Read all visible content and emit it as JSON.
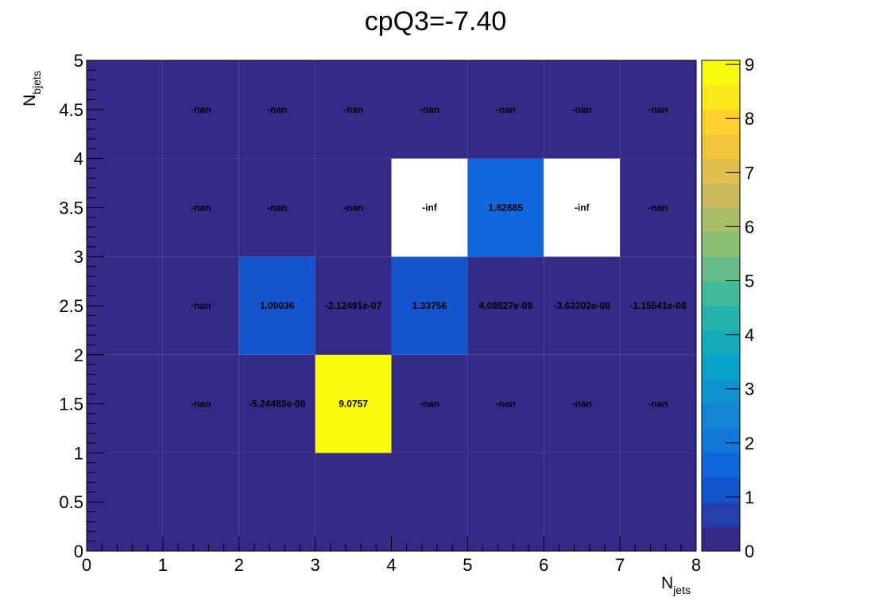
{
  "chart_data": {
    "type": "heatmap",
    "title": "cpQ3=-7.40",
    "xlabel": {
      "base": "N",
      "sub": "jets"
    },
    "ylabel": {
      "base": "N",
      "sub": "bjets"
    },
    "xlim": [
      0,
      8
    ],
    "ylim": [
      0,
      5
    ],
    "zlim": [
      0,
      9.0757
    ],
    "x_ticks": [
      "0",
      "1",
      "2",
      "3",
      "4",
      "5",
      "6",
      "7",
      "8"
    ],
    "y_ticks": [
      "0",
      "0.5",
      "1",
      "1.5",
      "2",
      "2.5",
      "3",
      "3.5",
      "4",
      "4.5",
      "5"
    ],
    "z_ticks": [
      "0",
      "1",
      "2",
      "3",
      "4",
      "5",
      "6",
      "7",
      "8",
      "9"
    ],
    "x_edges": [
      0,
      1,
      2,
      3,
      4,
      5,
      6,
      7,
      8
    ],
    "y_edges": [
      0,
      1,
      2,
      3,
      4,
      5
    ],
    "cells": [
      {
        "ix": 0,
        "iy": 0,
        "value": 0,
        "label": ""
      },
      {
        "ix": 1,
        "iy": 0,
        "value": 0,
        "label": ""
      },
      {
        "ix": 2,
        "iy": 0,
        "value": 0,
        "label": ""
      },
      {
        "ix": 3,
        "iy": 0,
        "value": 0,
        "label": ""
      },
      {
        "ix": 4,
        "iy": 0,
        "value": 0,
        "label": ""
      },
      {
        "ix": 5,
        "iy": 0,
        "value": 0,
        "label": ""
      },
      {
        "ix": 6,
        "iy": 0,
        "value": 0,
        "label": ""
      },
      {
        "ix": 7,
        "iy": 0,
        "value": 0,
        "label": ""
      },
      {
        "ix": 0,
        "iy": 1,
        "value": 0,
        "label": ""
      },
      {
        "ix": 1,
        "iy": 1,
        "value": null,
        "fill": "nan",
        "label": "-nan"
      },
      {
        "ix": 2,
        "iy": 1,
        "value": -5.24483e-08,
        "label": "-5.24483e-08"
      },
      {
        "ix": 3,
        "iy": 1,
        "value": 9.0757,
        "label": "9.0757"
      },
      {
        "ix": 4,
        "iy": 1,
        "value": null,
        "fill": "nan",
        "label": "-nan"
      },
      {
        "ix": 5,
        "iy": 1,
        "value": null,
        "fill": "nan",
        "label": "-nan"
      },
      {
        "ix": 6,
        "iy": 1,
        "value": null,
        "fill": "nan",
        "label": "-nan"
      },
      {
        "ix": 7,
        "iy": 1,
        "value": null,
        "fill": "nan",
        "label": "-nan"
      },
      {
        "ix": 0,
        "iy": 2,
        "value": 0,
        "label": ""
      },
      {
        "ix": 1,
        "iy": 2,
        "value": null,
        "fill": "nan",
        "label": "-nan"
      },
      {
        "ix": 2,
        "iy": 2,
        "value": 1.09036,
        "label": "1.09036"
      },
      {
        "ix": 3,
        "iy": 2,
        "value": -2.12491e-07,
        "label": "-2.12491e-07"
      },
      {
        "ix": 4,
        "iy": 2,
        "value": 1.33756,
        "label": "1.33756"
      },
      {
        "ix": 5,
        "iy": 2,
        "value": 4.08527e-09,
        "label": "4.08527e-09"
      },
      {
        "ix": 6,
        "iy": 2,
        "value": -3.63302e-08,
        "label": "-3.63302e-08"
      },
      {
        "ix": 7,
        "iy": 2,
        "value": -1.15541e-08,
        "label": "-1.15541e-08"
      },
      {
        "ix": 0,
        "iy": 3,
        "value": 0,
        "label": ""
      },
      {
        "ix": 1,
        "iy": 3,
        "value": null,
        "fill": "nan",
        "label": "-nan"
      },
      {
        "ix": 2,
        "iy": 3,
        "value": null,
        "fill": "nan",
        "label": "-nan"
      },
      {
        "ix": 3,
        "iy": 3,
        "value": null,
        "fill": "nan",
        "label": "-nan"
      },
      {
        "ix": 4,
        "iy": 3,
        "value": null,
        "fill": "inf",
        "label": "-inf"
      },
      {
        "ix": 5,
        "iy": 3,
        "value": 1.62685,
        "label": "1.62685"
      },
      {
        "ix": 6,
        "iy": 3,
        "value": null,
        "fill": "inf",
        "label": "-inf"
      },
      {
        "ix": 7,
        "iy": 3,
        "value": null,
        "fill": "nan",
        "label": "-nan"
      },
      {
        "ix": 0,
        "iy": 4,
        "value": 0,
        "label": ""
      },
      {
        "ix": 1,
        "iy": 4,
        "value": null,
        "fill": "nan",
        "label": "-nan"
      },
      {
        "ix": 2,
        "iy": 4,
        "value": null,
        "fill": "nan",
        "label": "-nan"
      },
      {
        "ix": 3,
        "iy": 4,
        "value": null,
        "fill": "nan",
        "label": "-nan"
      },
      {
        "ix": 4,
        "iy": 4,
        "value": null,
        "fill": "nan",
        "label": "-nan"
      },
      {
        "ix": 5,
        "iy": 4,
        "value": null,
        "fill": "nan",
        "label": "-nan"
      },
      {
        "ix": 6,
        "iy": 4,
        "value": null,
        "fill": "nan",
        "label": "-nan"
      },
      {
        "ix": 7,
        "iy": 4,
        "value": null,
        "fill": "nan",
        "label": "-nan"
      }
    ],
    "colors": {
      "nan": "#352a87",
      "inf": "#ffffff",
      "palette": [
        "#352a87",
        "#0f5cdd",
        "#1481d6",
        "#06a4ca",
        "#2eb7a4",
        "#87bf77",
        "#d1bb59",
        "#fec832",
        "#f9fb0e"
      ],
      "text": "#000000",
      "frame": "#000000"
    }
  }
}
